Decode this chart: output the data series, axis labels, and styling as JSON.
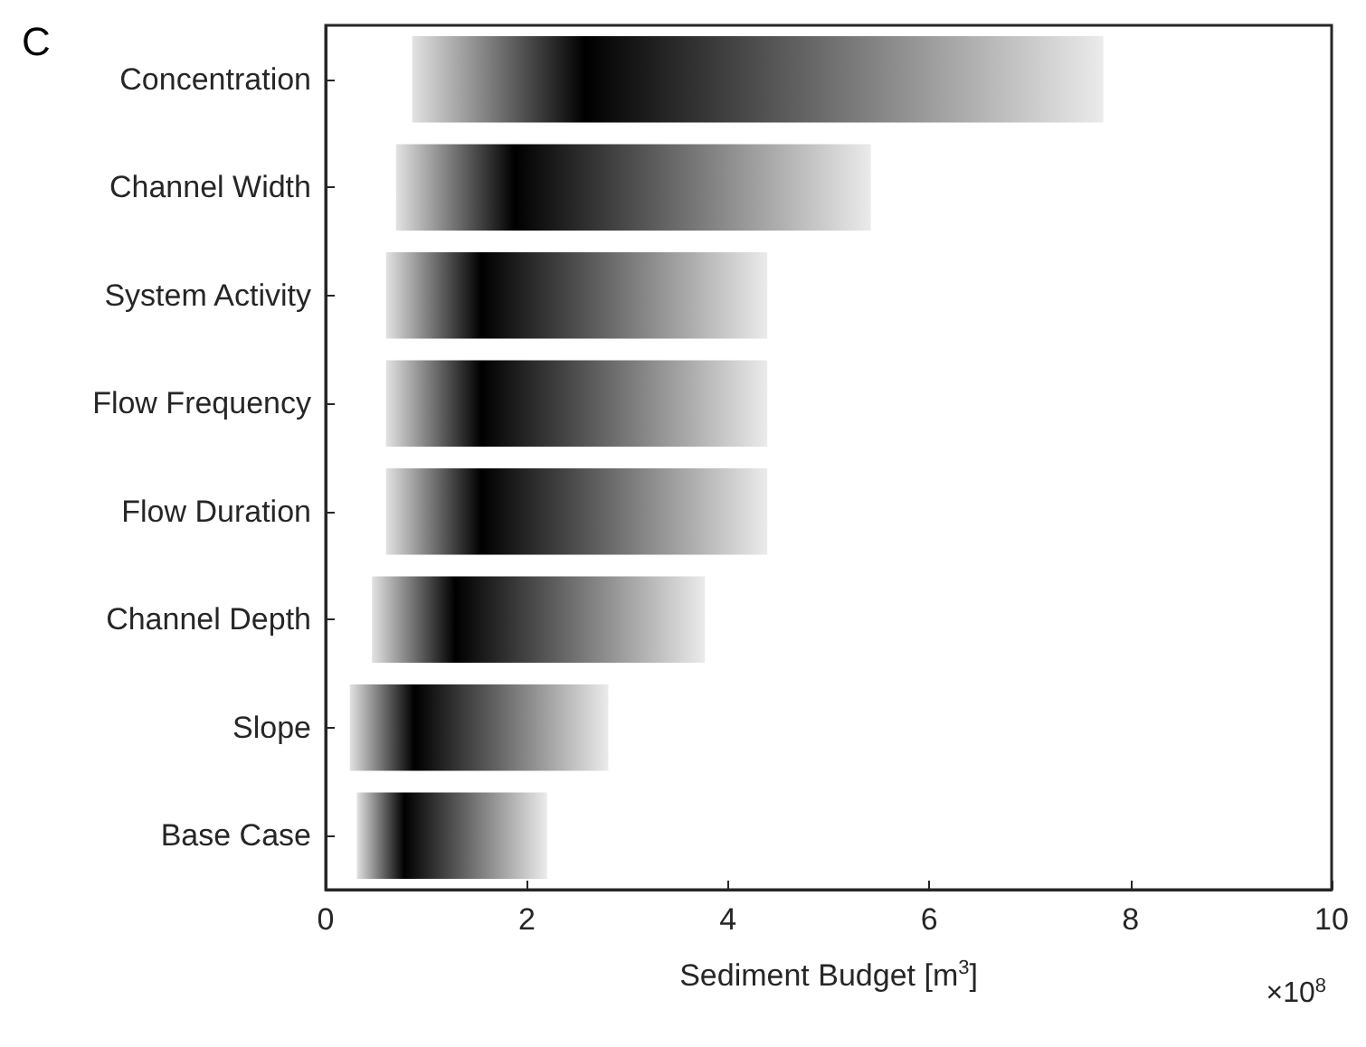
{
  "chart_data": {
    "type": "bar",
    "orientation": "horizontal",
    "categories": [
      "Concentration",
      "Channel Width",
      "System Activity",
      "Flow Frequency",
      "Flow Duration",
      "Channel Depth",
      "Slope",
      "Base Case"
    ],
    "base": [
      0.86,
      0.7,
      0.6,
      0.6,
      0.6,
      0.46,
      0.24,
      0.31
    ],
    "values": [
      6.87,
      4.72,
      3.79,
      3.79,
      3.79,
      3.31,
      2.57,
      1.89
    ],
    "color": "#000000",
    "xlim": [
      0,
      10
    ],
    "xticks": [
      0,
      2,
      4,
      6,
      8,
      10
    ],
    "xlabel": "Sediment Budget [m$^{3}$]",
    "annotations": [
      "C",
      "×10$^{8}$"
    ],
    "grid": false
  }
}
